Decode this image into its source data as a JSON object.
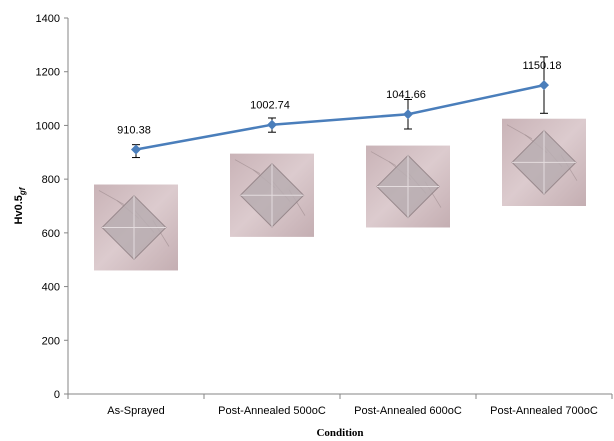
{
  "chart_data": {
    "type": "line",
    "categories": [
      "As-Sprayed",
      "Post-Annealed 500oC",
      "Post-Annealed 600oC",
      "Post-Annealed 700oC"
    ],
    "series": [
      {
        "values": [
          910.38,
          1002.74,
          1041.66,
          1150.18
        ],
        "error_low": [
          30,
          28,
          55,
          105
        ],
        "error_high": [
          18,
          25,
          55,
          105
        ],
        "color": "#4a7ebb"
      }
    ],
    "data_labels": [
      "910.38",
      "1002.74",
      "1041.66",
      "1150.18"
    ],
    "xlabel": "Condition",
    "ylabel_main": "Hv0.5",
    "ylabel_sub": "gf",
    "ylim": [
      0,
      1400
    ],
    "yticks": [
      0,
      200,
      400,
      600,
      800,
      1000,
      1200,
      1400
    ],
    "grid": false,
    "legend": "none",
    "insets": [
      {
        "name": "indent-photo-as-sprayed",
        "y_top": 780,
        "y_bottom": 460
      },
      {
        "name": "indent-photo-500",
        "y_top": 895,
        "y_bottom": 585
      },
      {
        "name": "indent-photo-600",
        "y_top": 925,
        "y_bottom": 620
      },
      {
        "name": "indent-photo-700",
        "y_top": 1025,
        "y_bottom": 700
      }
    ]
  }
}
